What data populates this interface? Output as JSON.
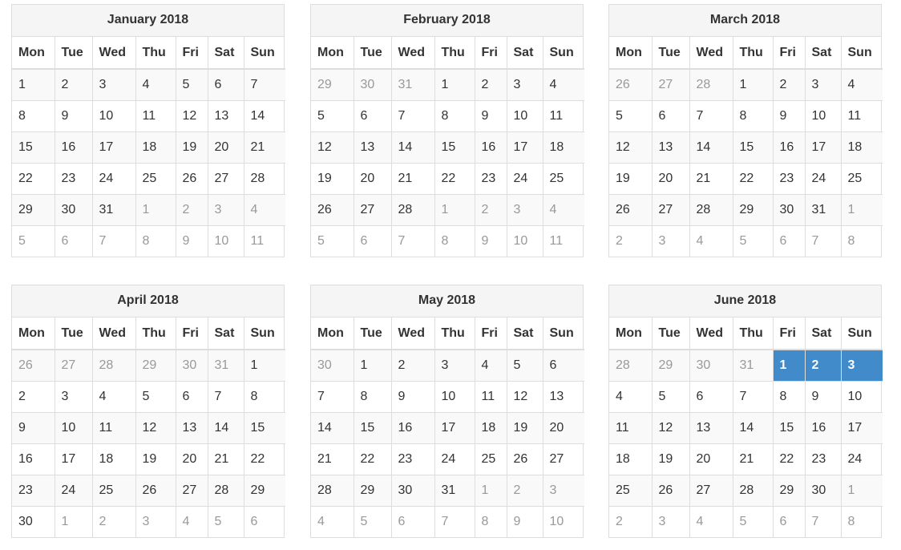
{
  "weekdays": [
    "Mon",
    "Tue",
    "Wed",
    "Thu",
    "Fri",
    "Sat",
    "Sun"
  ],
  "colors": {
    "selected": "#428bca",
    "other_month_text": "#999999",
    "header_bg": "#f5f5f5",
    "stripe_bg": "#f9f9f9"
  },
  "months": [
    {
      "title": "January 2018",
      "weeks": [
        [
          "1",
          "2",
          "3",
          "4",
          "5",
          "6",
          "7"
        ],
        [
          "8",
          "9",
          "10",
          "11",
          "12",
          "13",
          "14"
        ],
        [
          "15",
          "16",
          "17",
          "18",
          "19",
          "20",
          "21"
        ],
        [
          "22",
          "23",
          "24",
          "25",
          "26",
          "27",
          "28"
        ],
        [
          "29",
          "30",
          "31",
          "1",
          "2",
          "3",
          "4"
        ],
        [
          "5",
          "6",
          "7",
          "8",
          "9",
          "10",
          "11"
        ]
      ],
      "other": [
        [
          0,
          0,
          0,
          0,
          0,
          0,
          0
        ],
        [
          0,
          0,
          0,
          0,
          0,
          0,
          0
        ],
        [
          0,
          0,
          0,
          0,
          0,
          0,
          0
        ],
        [
          0,
          0,
          0,
          0,
          0,
          0,
          0
        ],
        [
          0,
          0,
          0,
          1,
          1,
          1,
          1
        ],
        [
          1,
          1,
          1,
          1,
          1,
          1,
          1
        ]
      ],
      "selected": []
    },
    {
      "title": "February 2018",
      "weeks": [
        [
          "29",
          "30",
          "31",
          "1",
          "2",
          "3",
          "4"
        ],
        [
          "5",
          "6",
          "7",
          "8",
          "9",
          "10",
          "11"
        ],
        [
          "12",
          "13",
          "14",
          "15",
          "16",
          "17",
          "18"
        ],
        [
          "19",
          "20",
          "21",
          "22",
          "23",
          "24",
          "25"
        ],
        [
          "26",
          "27",
          "28",
          "1",
          "2",
          "3",
          "4"
        ],
        [
          "5",
          "6",
          "7",
          "8",
          "9",
          "10",
          "11"
        ]
      ],
      "other": [
        [
          1,
          1,
          1,
          0,
          0,
          0,
          0
        ],
        [
          0,
          0,
          0,
          0,
          0,
          0,
          0
        ],
        [
          0,
          0,
          0,
          0,
          0,
          0,
          0
        ],
        [
          0,
          0,
          0,
          0,
          0,
          0,
          0
        ],
        [
          0,
          0,
          0,
          1,
          1,
          1,
          1
        ],
        [
          1,
          1,
          1,
          1,
          1,
          1,
          1
        ]
      ],
      "selected": []
    },
    {
      "title": "March 2018",
      "weeks": [
        [
          "26",
          "27",
          "28",
          "1",
          "2",
          "3",
          "4"
        ],
        [
          "5",
          "6",
          "7",
          "8",
          "9",
          "10",
          "11"
        ],
        [
          "12",
          "13",
          "14",
          "15",
          "16",
          "17",
          "18"
        ],
        [
          "19",
          "20",
          "21",
          "22",
          "23",
          "24",
          "25"
        ],
        [
          "26",
          "27",
          "28",
          "29",
          "30",
          "31",
          "1"
        ],
        [
          "2",
          "3",
          "4",
          "5",
          "6",
          "7",
          "8"
        ]
      ],
      "other": [
        [
          1,
          1,
          1,
          0,
          0,
          0,
          0
        ],
        [
          0,
          0,
          0,
          0,
          0,
          0,
          0
        ],
        [
          0,
          0,
          0,
          0,
          0,
          0,
          0
        ],
        [
          0,
          0,
          0,
          0,
          0,
          0,
          0
        ],
        [
          0,
          0,
          0,
          0,
          0,
          0,
          1
        ],
        [
          1,
          1,
          1,
          1,
          1,
          1,
          1
        ]
      ],
      "selected": []
    },
    {
      "title": "April 2018",
      "weeks": [
        [
          "26",
          "27",
          "28",
          "29",
          "30",
          "31",
          "1"
        ],
        [
          "2",
          "3",
          "4",
          "5",
          "6",
          "7",
          "8"
        ],
        [
          "9",
          "10",
          "11",
          "12",
          "13",
          "14",
          "15"
        ],
        [
          "16",
          "17",
          "18",
          "19",
          "20",
          "21",
          "22"
        ],
        [
          "23",
          "24",
          "25",
          "26",
          "27",
          "28",
          "29"
        ],
        [
          "30",
          "1",
          "2",
          "3",
          "4",
          "5",
          "6"
        ]
      ],
      "other": [
        [
          1,
          1,
          1,
          1,
          1,
          1,
          0
        ],
        [
          0,
          0,
          0,
          0,
          0,
          0,
          0
        ],
        [
          0,
          0,
          0,
          0,
          0,
          0,
          0
        ],
        [
          0,
          0,
          0,
          0,
          0,
          0,
          0
        ],
        [
          0,
          0,
          0,
          0,
          0,
          0,
          0
        ],
        [
          0,
          1,
          1,
          1,
          1,
          1,
          1
        ]
      ],
      "selected": []
    },
    {
      "title": "May 2018",
      "weeks": [
        [
          "30",
          "1",
          "2",
          "3",
          "4",
          "5",
          "6"
        ],
        [
          "7",
          "8",
          "9",
          "10",
          "11",
          "12",
          "13"
        ],
        [
          "14",
          "15",
          "16",
          "17",
          "18",
          "19",
          "20"
        ],
        [
          "21",
          "22",
          "23",
          "24",
          "25",
          "26",
          "27"
        ],
        [
          "28",
          "29",
          "30",
          "31",
          "1",
          "2",
          "3"
        ],
        [
          "4",
          "5",
          "6",
          "7",
          "8",
          "9",
          "10"
        ]
      ],
      "other": [
        [
          1,
          0,
          0,
          0,
          0,
          0,
          0
        ],
        [
          0,
          0,
          0,
          0,
          0,
          0,
          0
        ],
        [
          0,
          0,
          0,
          0,
          0,
          0,
          0
        ],
        [
          0,
          0,
          0,
          0,
          0,
          0,
          0
        ],
        [
          0,
          0,
          0,
          0,
          1,
          1,
          1
        ],
        [
          1,
          1,
          1,
          1,
          1,
          1,
          1
        ]
      ],
      "selected": []
    },
    {
      "title": "June 2018",
      "weeks": [
        [
          "28",
          "29",
          "30",
          "31",
          "1",
          "2",
          "3"
        ],
        [
          "4",
          "5",
          "6",
          "7",
          "8",
          "9",
          "10"
        ],
        [
          "11",
          "12",
          "13",
          "14",
          "15",
          "16",
          "17"
        ],
        [
          "18",
          "19",
          "20",
          "21",
          "22",
          "23",
          "24"
        ],
        [
          "25",
          "26",
          "27",
          "28",
          "29",
          "30",
          "1"
        ],
        [
          "2",
          "3",
          "4",
          "5",
          "6",
          "7",
          "8"
        ]
      ],
      "other": [
        [
          1,
          1,
          1,
          1,
          0,
          0,
          0
        ],
        [
          0,
          0,
          0,
          0,
          0,
          0,
          0
        ],
        [
          0,
          0,
          0,
          0,
          0,
          0,
          0
        ],
        [
          0,
          0,
          0,
          0,
          0,
          0,
          0
        ],
        [
          0,
          0,
          0,
          0,
          0,
          0,
          1
        ],
        [
          1,
          1,
          1,
          1,
          1,
          1,
          1
        ]
      ],
      "selected": [
        [
          0,
          4
        ],
        [
          0,
          5
        ],
        [
          0,
          6
        ]
      ]
    }
  ]
}
